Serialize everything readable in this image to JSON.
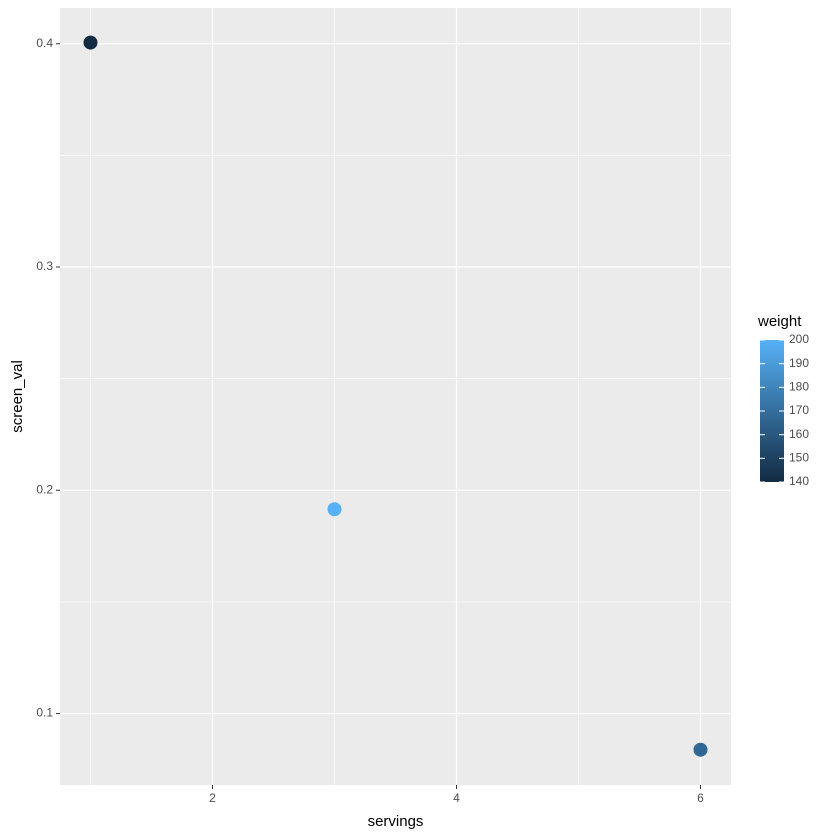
{
  "chart_data": {
    "type": "scatter",
    "x_label": "servings",
    "y_label": "screen_val",
    "x": [
      1,
      3,
      6
    ],
    "values": [
      0.4005,
      0.1915,
      0.0838
    ],
    "color_values": [
      140,
      200,
      167
    ],
    "color_name": "weight",
    "color_low": "#132B43",
    "color_high": "#56B1F7",
    "colorlim": [
      140,
      200
    ],
    "colorticks": [
      140,
      150,
      160,
      170,
      180,
      190,
      200
    ],
    "xlim": [
      0.75,
      6.25
    ],
    "xticks": [
      2,
      4,
      6
    ],
    "ylim": [
      0.068,
      0.416
    ],
    "yticks": [
      0.1,
      0.2,
      0.3,
      0.4
    ],
    "grid": true,
    "legend": "right"
  }
}
